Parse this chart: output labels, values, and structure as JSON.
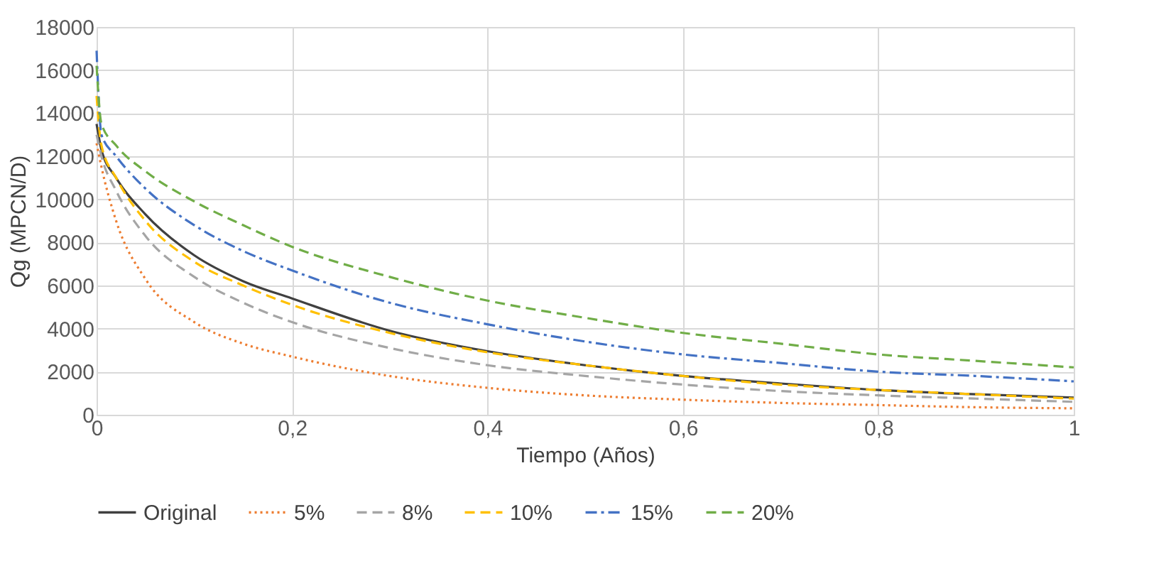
{
  "chart_data": {
    "type": "line",
    "xlabel": "Tiempo (Años)",
    "ylabel": "Qg (MPCN/D)",
    "x": [
      0,
      0.005,
      0.02,
      0.05,
      0.1,
      0.15,
      0.2,
      0.3,
      0.4,
      0.5,
      0.6,
      0.7,
      0.8,
      0.9,
      1
    ],
    "xlim": [
      0,
      1
    ],
    "xticks": [
      0,
      {
        "value": 0.2,
        "label": "0,2"
      },
      {
        "value": 0.4,
        "label": "0,4"
      },
      {
        "value": 0.6,
        "label": "0,6"
      },
      {
        "value": 0.8,
        "label": "0,8"
      },
      1
    ],
    "ylim": [
      0,
      18000
    ],
    "yticks": [
      0,
      2000,
      4000,
      6000,
      8000,
      10000,
      12000,
      14000,
      16000,
      18000
    ],
    "grid": true,
    "legend": "bottom",
    "marker": "none",
    "series": [
      {
        "name": "Original",
        "color": "#404040",
        "line_style": "solid",
        "values": [
          13500,
          12300,
          11000,
          9300,
          7400,
          6200,
          5400,
          3900,
          2950,
          2300,
          1800,
          1450,
          1150,
          950,
          800
        ]
      },
      {
        "name": "5%",
        "color": "#ed7d31",
        "line_style": "dotted",
        "values": [
          12600,
          11500,
          9000,
          6300,
          4300,
          3300,
          2700,
          1800,
          1250,
          900,
          700,
          550,
          450,
          350,
          300
        ]
      },
      {
        "name": "8%",
        "color": "#a5a5a5",
        "line_style": "dashed",
        "values": [
          13000,
          12000,
          10400,
          8300,
          6400,
          5200,
          4300,
          3100,
          2300,
          1800,
          1400,
          1100,
          900,
          750,
          600
        ]
      },
      {
        "name": "10%",
        "color": "#ffc000",
        "line_style": "dashed",
        "values": [
          14800,
          12500,
          11000,
          9000,
          7100,
          6000,
          5100,
          3800,
          2900,
          2300,
          1800,
          1400,
          1150,
          950,
          750
        ]
      },
      {
        "name": "15%",
        "color": "#4472c4",
        "line_style": "dashdot",
        "values": [
          16900,
          13000,
          12000,
          10500,
          8800,
          7600,
          6700,
          5200,
          4200,
          3400,
          2800,
          2400,
          2000,
          1800,
          1550
        ]
      },
      {
        "name": "20%",
        "color": "#70ad47",
        "line_style": "dashed",
        "values": [
          16200,
          13500,
          12500,
          11300,
          9900,
          8800,
          7800,
          6400,
          5300,
          4500,
          3800,
          3300,
          2800,
          2500,
          2200
        ]
      }
    ]
  }
}
